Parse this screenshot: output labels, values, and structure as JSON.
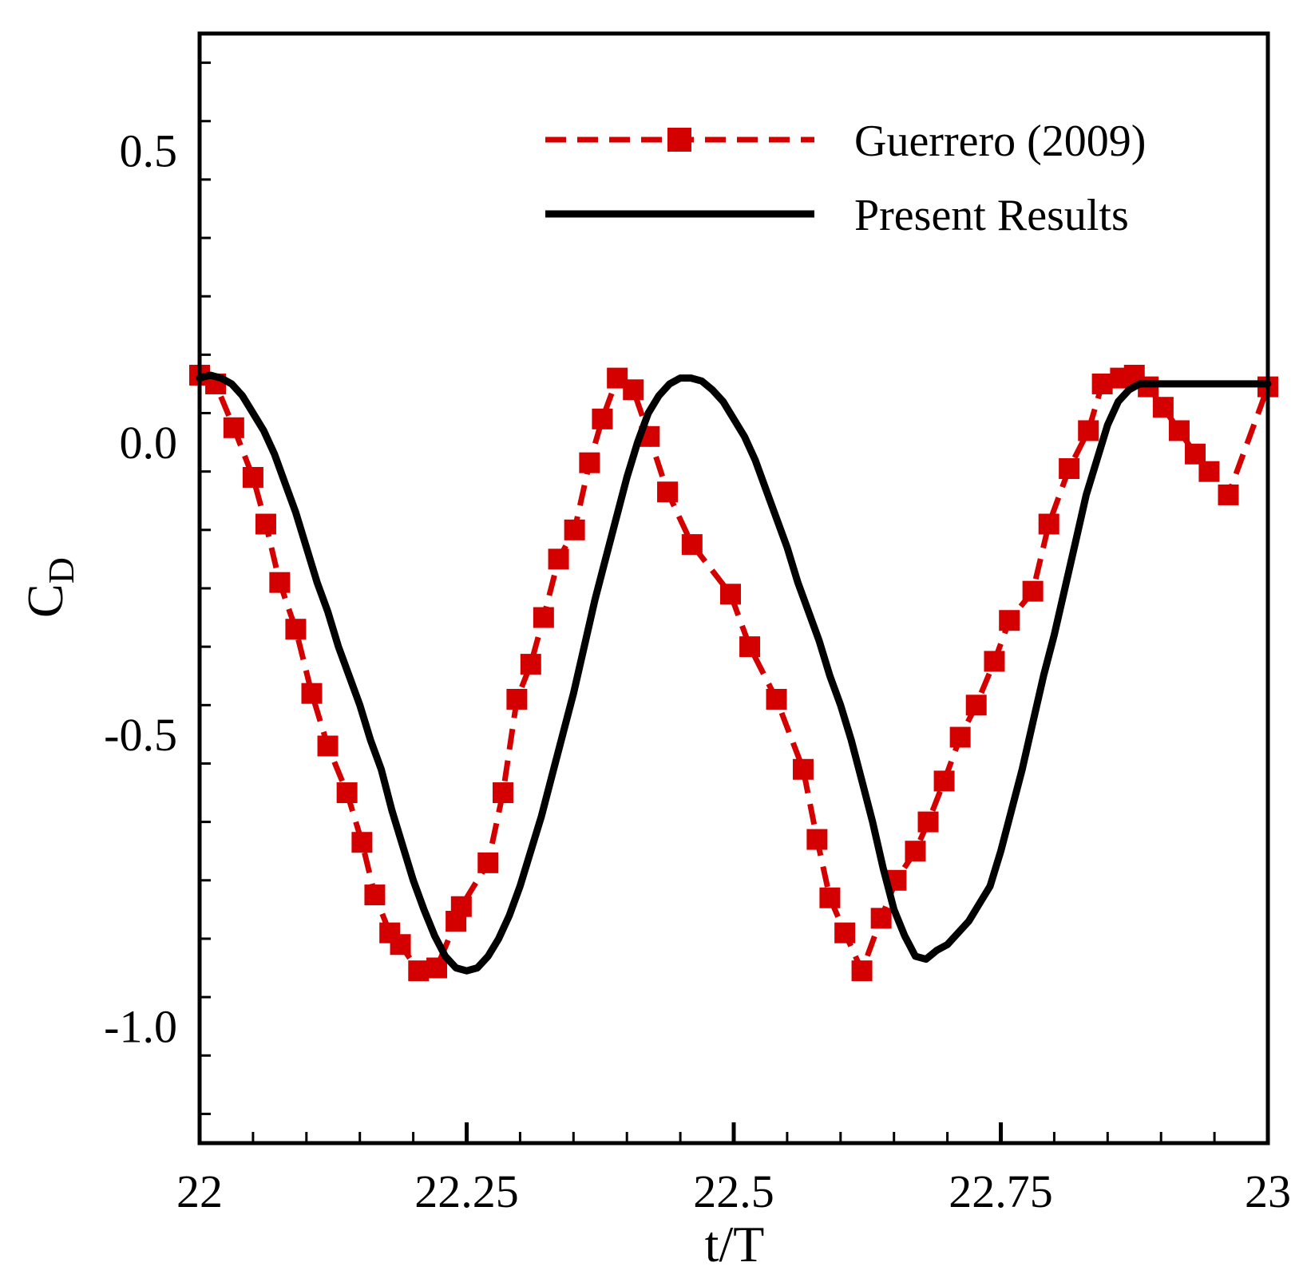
{
  "chart_data": {
    "type": "line",
    "title": "",
    "xlabel": "t/T",
    "ylabel": "C",
    "ylabel_subscript": "D",
    "xlim": [
      22,
      23
    ],
    "ylim": [
      -1.2,
      0.7
    ],
    "xticks": [
      22,
      22.25,
      22.5,
      22.75,
      23
    ],
    "xtick_labels": [
      "22",
      "22.25",
      "22.5",
      "22.75",
      "23"
    ],
    "yticks": [
      0.5,
      0.0,
      -0.5,
      -1.0
    ],
    "ytick_labels": [
      "0.5",
      "0.0",
      "-0.5",
      "-1.0"
    ],
    "legend_position": "top-right",
    "series": [
      {
        "name": "Guerrero (2009)",
        "color": "#d40000",
        "style": "dashed-square-markers",
        "x": [
          22.0,
          22.015,
          22.032,
          22.05,
          22.062,
          22.075,
          22.09,
          22.105,
          22.12,
          22.138,
          22.152,
          22.164,
          22.178,
          22.188,
          22.205,
          22.222,
          22.24,
          22.245,
          22.27,
          22.284,
          22.297,
          22.31,
          22.322,
          22.336,
          22.351,
          22.365,
          22.377,
          22.391,
          22.406,
          22.421,
          22.438,
          22.461,
          22.497,
          22.515,
          22.54,
          22.565,
          22.578,
          22.59,
          22.604,
          22.62,
          22.638,
          22.652,
          22.67,
          22.682,
          22.697,
          22.712,
          22.727,
          22.744,
          22.758,
          22.78,
          22.795,
          22.814,
          22.832,
          22.845,
          22.862,
          22.875,
          22.888,
          22.902,
          22.917,
          22.932,
          22.945,
          22.963,
          23.0
        ],
        "y": [
          0.115,
          0.1,
          0.025,
          -0.06,
          -0.14,
          -0.24,
          -0.32,
          -0.43,
          -0.52,
          -0.6,
          -0.685,
          -0.775,
          -0.84,
          -0.86,
          -0.905,
          -0.9,
          -0.82,
          -0.795,
          -0.72,
          -0.6,
          -0.44,
          -0.38,
          -0.3,
          -0.2,
          -0.15,
          -0.035,
          0.04,
          0.11,
          0.09,
          0.01,
          -0.085,
          -0.175,
          -0.26,
          -0.35,
          -0.44,
          -0.56,
          -0.68,
          -0.78,
          -0.84,
          -0.905,
          -0.815,
          -0.75,
          -0.7,
          -0.65,
          -0.58,
          -0.505,
          -0.45,
          -0.375,
          -0.305,
          -0.255,
          -0.14,
          -0.045,
          0.02,
          0.1,
          0.11,
          0.115,
          0.095,
          0.06,
          0.02,
          -0.02,
          -0.05,
          -0.09,
          0.095
        ]
      },
      {
        "name": "Present Results",
        "color": "#000000",
        "style": "solid",
        "x": [
          22.0,
          22.01,
          22.02,
          22.03,
          22.04,
          22.05,
          22.06,
          22.07,
          22.08,
          22.09,
          22.1,
          22.11,
          22.12,
          22.13,
          22.14,
          22.15,
          22.16,
          22.17,
          22.18,
          22.19,
          22.2,
          22.21,
          22.22,
          22.23,
          22.24,
          22.25,
          22.26,
          22.27,
          22.28,
          22.29,
          22.3,
          22.31,
          22.32,
          22.33,
          22.34,
          22.35,
          22.36,
          22.37,
          22.38,
          22.39,
          22.4,
          22.41,
          22.42,
          22.43,
          22.44,
          22.45,
          22.46,
          22.47,
          22.48,
          22.49,
          22.5,
          22.51,
          22.52,
          22.53,
          22.54,
          22.55,
          22.56,
          22.57,
          22.58,
          22.59,
          22.6,
          22.61,
          22.62,
          22.63,
          22.64,
          22.65,
          22.66,
          22.67,
          22.68,
          22.69,
          22.7,
          22.71,
          22.72,
          22.73,
          22.74,
          22.75,
          22.76,
          22.77,
          22.78,
          22.79,
          22.8,
          22.81,
          22.82,
          22.83,
          22.84,
          22.85,
          22.86,
          22.87,
          22.88,
          22.89,
          22.9,
          22.91,
          22.92,
          22.93,
          22.94,
          22.95,
          22.96,
          22.97,
          22.98,
          22.99,
          23.0
        ],
        "y": [
          0.11,
          0.115,
          0.11,
          0.1,
          0.08,
          0.05,
          0.02,
          -0.02,
          -0.07,
          -0.12,
          -0.18,
          -0.24,
          -0.29,
          -0.35,
          -0.4,
          -0.45,
          -0.51,
          -0.56,
          -0.63,
          -0.69,
          -0.75,
          -0.8,
          -0.845,
          -0.88,
          -0.9,
          -0.905,
          -0.9,
          -0.88,
          -0.85,
          -0.81,
          -0.76,
          -0.7,
          -0.64,
          -0.57,
          -0.5,
          -0.43,
          -0.35,
          -0.27,
          -0.2,
          -0.13,
          -0.06,
          0.0,
          0.05,
          0.08,
          0.1,
          0.11,
          0.11,
          0.105,
          0.09,
          0.07,
          0.04,
          0.01,
          -0.03,
          -0.08,
          -0.13,
          -0.18,
          -0.24,
          -0.29,
          -0.34,
          -0.4,
          -0.45,
          -0.51,
          -0.58,
          -0.65,
          -0.73,
          -0.8,
          -0.845,
          -0.88,
          -0.885,
          -0.87,
          -0.86,
          -0.84,
          -0.82,
          -0.79,
          -0.76,
          -0.7,
          -0.63,
          -0.56,
          -0.48,
          -0.4,
          -0.33,
          -0.25,
          -0.17,
          -0.09,
          -0.03,
          0.03,
          0.07,
          0.09,
          0.1,
          0.1,
          0.1,
          0.1,
          0.1,
          0.1,
          0.1,
          0.1,
          0.1,
          0.1,
          0.1,
          0.1,
          0.1
        ]
      }
    ]
  }
}
